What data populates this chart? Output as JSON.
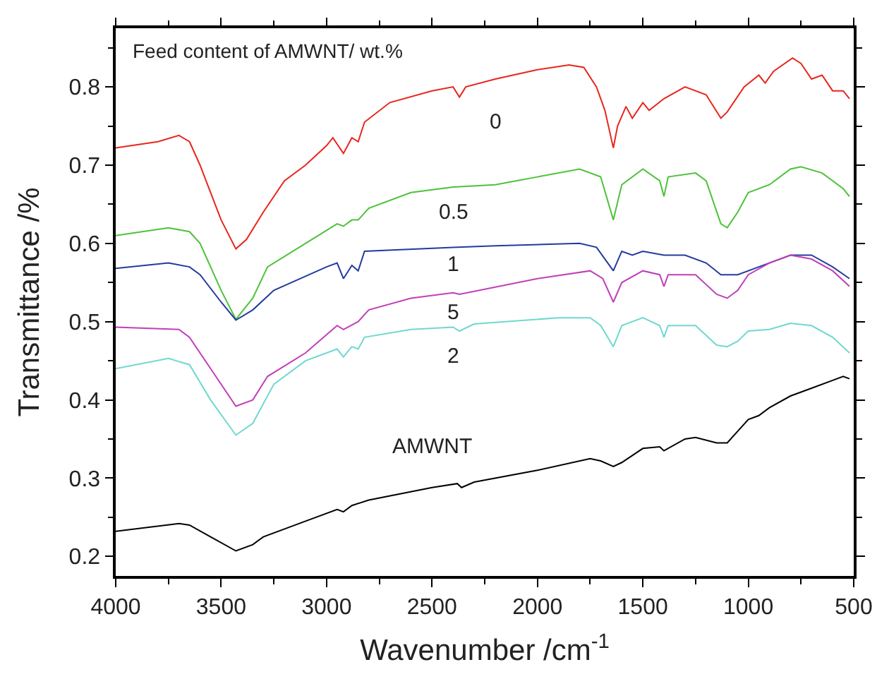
{
  "chart_data": {
    "type": "line",
    "xlabel": "Wavenumber /cm$^{-1}$",
    "ylabel": "Transmittance /%",
    "xlim": [
      4000,
      500
    ],
    "xticks": [
      4000,
      3500,
      3000,
      2500,
      2000,
      1500,
      1000,
      500
    ],
    "ylim": [
      0.175,
      0.875
    ],
    "yticks": [
      0.2,
      0.3,
      0.4,
      0.5,
      0.6,
      0.7,
      0.8
    ],
    "grid": false,
    "legend": false,
    "marker": "none",
    "line_style": "solid",
    "annotations": [
      "Feed content of AMWNT/ wt.%"
    ],
    "series": [
      {
        "name": "0",
        "color": "#e8261c",
        "x": [
          4000,
          3800,
          3700,
          3650,
          3600,
          3500,
          3430,
          3380,
          3300,
          3200,
          3100,
          3000,
          2970,
          2920,
          2880,
          2850,
          2820,
          2700,
          2500,
          2400,
          2370,
          2340,
          2200,
          2000,
          1850,
          1780,
          1720,
          1680,
          1640,
          1620,
          1580,
          1550,
          1500,
          1470,
          1400,
          1300,
          1200,
          1130,
          1100,
          1020,
          950,
          920,
          880,
          790,
          750,
          700,
          650,
          600,
          550,
          520
        ],
        "values": [
          0.722,
          0.73,
          0.738,
          0.73,
          0.7,
          0.63,
          0.593,
          0.605,
          0.64,
          0.68,
          0.7,
          0.725,
          0.735,
          0.715,
          0.735,
          0.73,
          0.755,
          0.78,
          0.795,
          0.8,
          0.787,
          0.8,
          0.81,
          0.822,
          0.828,
          0.825,
          0.8,
          0.77,
          0.722,
          0.75,
          0.775,
          0.76,
          0.78,
          0.77,
          0.785,
          0.8,
          0.79,
          0.76,
          0.768,
          0.8,
          0.815,
          0.805,
          0.82,
          0.837,
          0.83,
          0.81,
          0.815,
          0.795,
          0.795,
          0.785
        ]
      },
      {
        "name": "0.5",
        "color": "#4dc23a",
        "x": [
          4000,
          3750,
          3650,
          3600,
          3500,
          3430,
          3350,
          3280,
          3100,
          2950,
          2920,
          2880,
          2850,
          2800,
          2600,
          2400,
          2200,
          2000,
          1800,
          1700,
          1640,
          1600,
          1500,
          1420,
          1400,
          1380,
          1250,
          1200,
          1130,
          1100,
          1050,
          1000,
          900,
          800,
          750,
          650,
          550,
          520
        ],
        "values": [
          0.61,
          0.62,
          0.615,
          0.6,
          0.54,
          0.503,
          0.53,
          0.57,
          0.6,
          0.625,
          0.622,
          0.63,
          0.63,
          0.645,
          0.665,
          0.672,
          0.675,
          0.685,
          0.695,
          0.685,
          0.63,
          0.675,
          0.695,
          0.68,
          0.66,
          0.685,
          0.69,
          0.68,
          0.625,
          0.62,
          0.64,
          0.665,
          0.675,
          0.695,
          0.698,
          0.69,
          0.67,
          0.66
        ]
      },
      {
        "name": "1",
        "color": "#233b9e",
        "x": [
          4000,
          3750,
          3650,
          3600,
          3500,
          3430,
          3350,
          3250,
          3000,
          2950,
          2920,
          2880,
          2850,
          2820,
          2400,
          2200,
          1800,
          1720,
          1640,
          1600,
          1550,
          1500,
          1400,
          1300,
          1200,
          1130,
          1050,
          950,
          800,
          700,
          600,
          520
        ],
        "values": [
          0.568,
          0.575,
          0.57,
          0.56,
          0.525,
          0.502,
          0.515,
          0.54,
          0.57,
          0.575,
          0.555,
          0.572,
          0.565,
          0.59,
          0.595,
          0.597,
          0.6,
          0.595,
          0.565,
          0.59,
          0.585,
          0.59,
          0.585,
          0.585,
          0.575,
          0.56,
          0.56,
          0.57,
          0.585,
          0.585,
          0.57,
          0.555
        ]
      },
      {
        "name": "5",
        "color": "#c040b8",
        "x": [
          4000,
          3700,
          3650,
          3550,
          3430,
          3350,
          3280,
          3100,
          2950,
          2920,
          2850,
          2800,
          2600,
          2400,
          2370,
          2000,
          1750,
          1690,
          1640,
          1600,
          1500,
          1420,
          1400,
          1380,
          1250,
          1150,
          1100,
          1050,
          1000,
          900,
          800,
          700,
          600,
          520
        ],
        "values": [
          0.493,
          0.49,
          0.48,
          0.44,
          0.392,
          0.4,
          0.43,
          0.46,
          0.495,
          0.49,
          0.5,
          0.515,
          0.53,
          0.537,
          0.535,
          0.555,
          0.565,
          0.555,
          0.525,
          0.55,
          0.565,
          0.56,
          0.545,
          0.56,
          0.56,
          0.535,
          0.53,
          0.54,
          0.56,
          0.575,
          0.585,
          0.58,
          0.565,
          0.545
        ]
      },
      {
        "name": "2",
        "color": "#70d8d0",
        "x": [
          4000,
          3750,
          3650,
          3550,
          3430,
          3350,
          3250,
          3100,
          2950,
          2920,
          2880,
          2850,
          2820,
          2600,
          2400,
          2370,
          2300,
          1900,
          1750,
          1700,
          1640,
          1600,
          1500,
          1420,
          1400,
          1380,
          1250,
          1150,
          1100,
          1050,
          1000,
          900,
          800,
          700,
          600,
          520
        ],
        "values": [
          0.44,
          0.453,
          0.445,
          0.4,
          0.355,
          0.37,
          0.42,
          0.45,
          0.465,
          0.455,
          0.468,
          0.465,
          0.48,
          0.49,
          0.493,
          0.488,
          0.497,
          0.505,
          0.505,
          0.495,
          0.468,
          0.495,
          0.505,
          0.495,
          0.48,
          0.495,
          0.495,
          0.47,
          0.468,
          0.475,
          0.488,
          0.49,
          0.498,
          0.495,
          0.48,
          0.46
        ]
      },
      {
        "name": "AMWNT",
        "color": "#000000",
        "x": [
          4000,
          3700,
          3650,
          3550,
          3430,
          3350,
          3300,
          3100,
          2950,
          2920,
          2880,
          2800,
          2500,
          2380,
          2360,
          2300,
          2000,
          1750,
          1700,
          1640,
          1600,
          1500,
          1420,
          1400,
          1300,
          1250,
          1150,
          1100,
          1050,
          1000,
          950,
          900,
          800,
          700,
          600,
          550,
          520
        ],
        "values": [
          0.232,
          0.242,
          0.24,
          0.225,
          0.207,
          0.215,
          0.225,
          0.245,
          0.26,
          0.257,
          0.265,
          0.272,
          0.288,
          0.293,
          0.288,
          0.295,
          0.31,
          0.325,
          0.322,
          0.315,
          0.32,
          0.338,
          0.34,
          0.335,
          0.35,
          0.352,
          0.345,
          0.345,
          0.36,
          0.375,
          0.38,
          0.39,
          0.405,
          0.415,
          0.425,
          0.43,
          0.427
        ]
      }
    ]
  }
}
